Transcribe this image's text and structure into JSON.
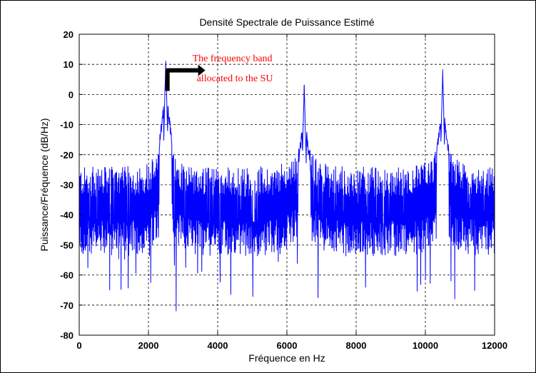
{
  "chart_data": {
    "type": "line",
    "title": "Densité Spectrale de Puissance Estimé",
    "xlabel": "Fréquence en Hz",
    "ylabel": "Puissance/Fréquence (dB/Hz)",
    "xlim": [
      0,
      12000
    ],
    "ylim": [
      -80,
      20
    ],
    "xticks": [
      0,
      2000,
      4000,
      6000,
      8000,
      10000,
      12000
    ],
    "yticks": [
      -80,
      -70,
      -60,
      -50,
      -40,
      -30,
      -20,
      -10,
      0,
      10,
      20
    ],
    "grid": true,
    "grid_style": "dashed",
    "series": [
      {
        "color": "#0000ff",
        "noise_floor_db": -38,
        "noise_spread_db": [
          -72,
          -24
        ],
        "peaks": [
          {
            "x": 2500,
            "y": 11
          },
          {
            "x": 6500,
            "y": 3
          },
          {
            "x": 10500,
            "y": 7
          }
        ],
        "deep_dips": [
          {
            "x": 2800,
            "y": -72
          },
          {
            "x": 880,
            "y": -65
          },
          {
            "x": 10850,
            "y": -68
          }
        ]
      }
    ],
    "annotation": {
      "lines": [
        "The frequency band",
        "allocated to the SU"
      ],
      "color": "#ff0000",
      "arrow_from": {
        "x": 2550,
        "y": 4
      },
      "arrow_to": {
        "x": 3600,
        "y": 8
      }
    }
  },
  "axis_color": "#000000",
  "grid_color": "#000000"
}
